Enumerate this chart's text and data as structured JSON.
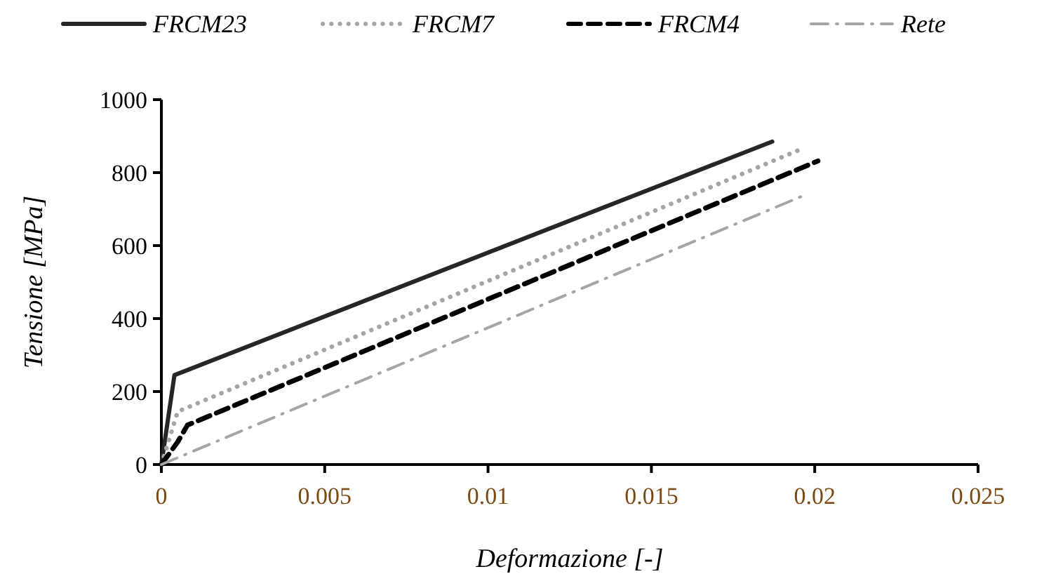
{
  "chart_data": {
    "type": "line",
    "xlabel": "Deformazione  [-]",
    "ylabel": "Tensione  [MPa]",
    "xlim": [
      0,
      0.025
    ],
    "xticks": [
      0,
      0.005,
      0.01,
      0.015,
      0.02,
      0.025
    ],
    "ylim": [
      0,
      1000
    ],
    "yticks": [
      0,
      200,
      400,
      600,
      800,
      1000
    ],
    "grid": false,
    "legend": "top",
    "series": [
      {
        "name": "FRCM23",
        "color": "#262626",
        "line_style": "solid",
        "x": [
          0,
          0.0004,
          0.0187
        ],
        "values": [
          0,
          245,
          885
        ]
      },
      {
        "name": "FRCM7",
        "color": "#a6a6a6",
        "line_style": "dotted",
        "x": [
          0,
          0.0005,
          0.0196
        ],
        "values": [
          0,
          145,
          865
        ]
      },
      {
        "name": "FRCM4",
        "color": "#000000",
        "line_style": "dashed",
        "x": [
          0,
          0.0005,
          0.0008,
          0.0201
        ],
        "values": [
          0,
          62,
          108,
          832
        ]
      },
      {
        "name": "Rete",
        "color": "#a6a6a6",
        "line_style": "dashdot",
        "x": [
          0,
          0.0196
        ],
        "values": [
          0,
          735
        ]
      }
    ]
  }
}
